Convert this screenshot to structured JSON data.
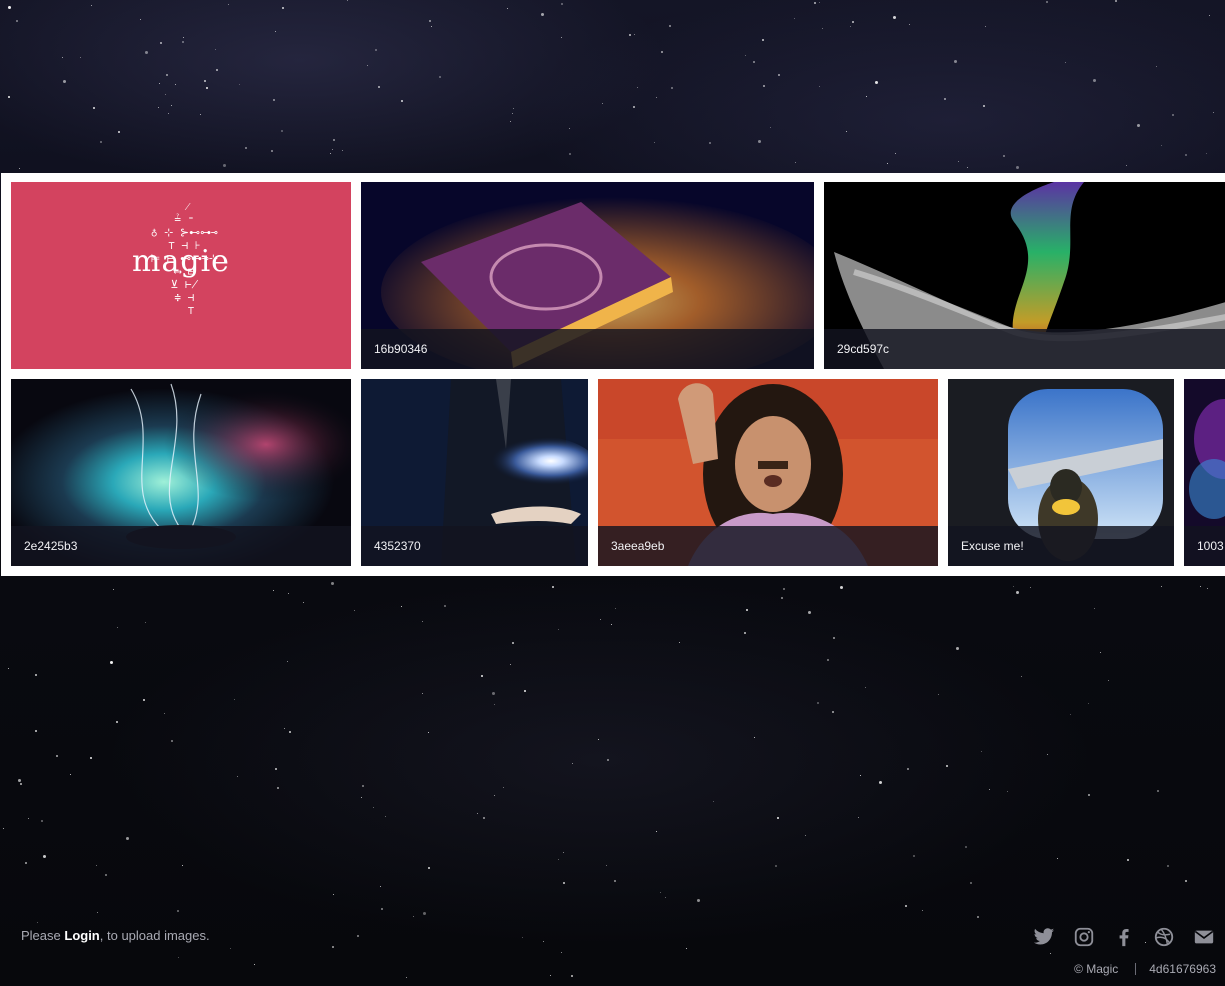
{
  "gallery": {
    "tiles": [
      {
        "name": "magic-logo",
        "caption": "",
        "logo_text": "magie"
      },
      {
        "name": "16b90346",
        "caption": "16b90346"
      },
      {
        "name": "29cd597c",
        "caption": "29cd597c"
      },
      {
        "name": "2e2425b3",
        "caption": "2e2425b3"
      },
      {
        "name": "4352370",
        "caption": "4352370"
      },
      {
        "name": "3aeea9eb",
        "caption": "3aeea9eb"
      },
      {
        "name": "excuse-me",
        "caption": "Excuse me!"
      },
      {
        "name": "1003",
        "caption": "1003"
      }
    ]
  },
  "footer": {
    "prefix": "Please ",
    "login_label": "Login",
    "suffix": ", to upload images.",
    "copyright": "© Magic",
    "build_id": "4d61676963",
    "social_icons": [
      "twitter-icon",
      "instagram-icon",
      "facebook-icon",
      "dribbble-icon",
      "mail-icon"
    ]
  },
  "colors": {
    "logo_tile_bg": "#d3435f",
    "caption_bg": "#121420",
    "gallery_bg": "#ffffff",
    "footer_text": "#a9aab3"
  }
}
